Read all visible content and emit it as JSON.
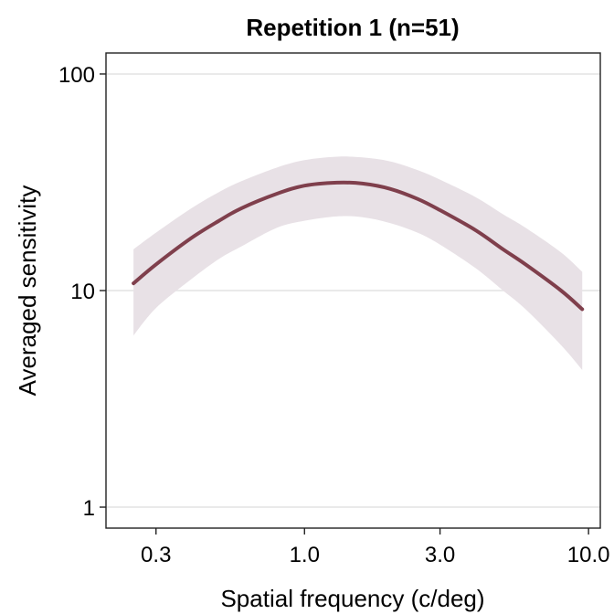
{
  "chart_data": {
    "type": "line",
    "title": "Repetition 1 (n=51)",
    "xlabel": "Spatial frequency (c/deg)",
    "ylabel": "Averaged sensitivity",
    "x_scale": "log",
    "y_scale": "log",
    "xlim": [
      0.2,
      11
    ],
    "ylim": [
      0.8,
      125
    ],
    "x_ticks": [
      0.3,
      1.0,
      3.0,
      10.0
    ],
    "x_tick_labels": [
      "0.3",
      "1.0",
      "3.0",
      "10.0"
    ],
    "y_ticks": [
      1,
      10,
      100
    ],
    "y_tick_labels": [
      "1",
      "10",
      "100"
    ],
    "grid": "horizontal",
    "colors": {
      "line": "#7f3f4c",
      "band": "#e8e1e6"
    },
    "series": [
      {
        "x": [
          0.25,
          0.3,
          0.4,
          0.5,
          0.6,
          0.8,
          1.0,
          1.3,
          1.6,
          2.0,
          2.5,
          3.0,
          4.0,
          5.0,
          6.0,
          8.0,
          9.5
        ],
        "values": [
          10.8,
          13.2,
          17.5,
          21.0,
          24.0,
          28.0,
          30.5,
          31.5,
          31.2,
          29.5,
          26.5,
          23.5,
          19.0,
          15.5,
          13.2,
          10.0,
          8.2
        ],
        "lower": [
          6.2,
          8.3,
          11.3,
          14.0,
          16.0,
          19.5,
          21.0,
          22.0,
          21.8,
          20.5,
          18.5,
          16.3,
          12.7,
          10.0,
          8.2,
          5.6,
          4.3
        ],
        "upper": [
          15.5,
          18.5,
          24.0,
          28.5,
          32.0,
          37.0,
          40.0,
          41.5,
          41.2,
          39.5,
          36.0,
          32.5,
          27.0,
          22.5,
          19.5,
          15.0,
          12.2
        ]
      }
    ]
  }
}
